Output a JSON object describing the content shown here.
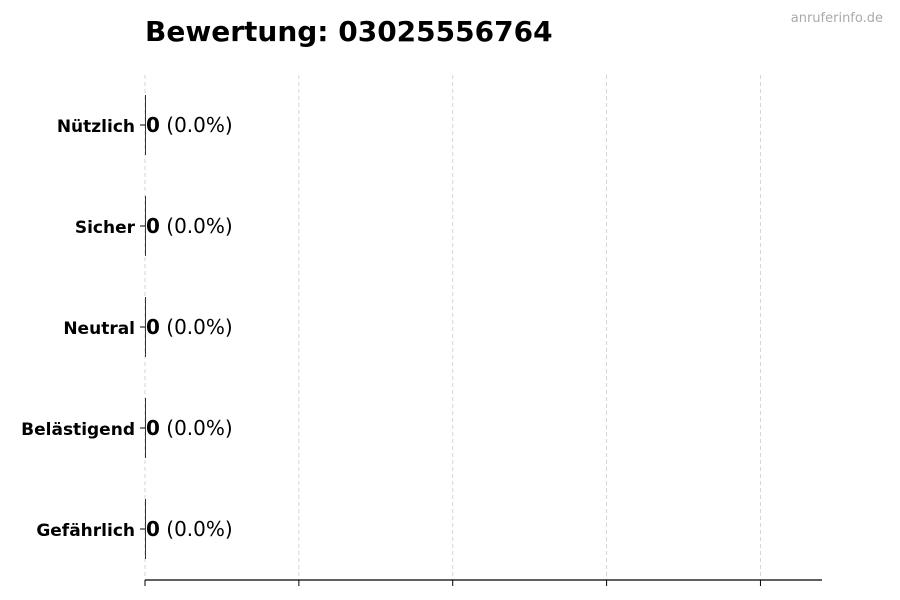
{
  "watermark": "anruferinfo.de",
  "chart_data": {
    "type": "bar",
    "orientation": "horizontal",
    "title": "Bewertung: 03025556764",
    "xlabel": "",
    "ylabel": "",
    "categories": [
      "Nützlich",
      "Sicher",
      "Neutral",
      "Belästigend",
      "Gefährlich"
    ],
    "values": [
      0,
      0,
      0,
      0,
      0
    ],
    "value_labels": [
      "0",
      "0",
      "0",
      "0",
      "0"
    ],
    "percent_labels": [
      "(0.0%)",
      "(0.0%)",
      "(0.0%)",
      "(0.0%)",
      "(0.0%)"
    ],
    "xlim": [
      0,
      4.4
    ],
    "xticks": [
      0,
      1,
      2,
      3,
      4
    ],
    "xtick_labels_shown": false,
    "grid": "x dashed",
    "colors": {
      "bar": "#333333",
      "grid": "#cccccc",
      "watermark": "#aaaaaa"
    }
  }
}
